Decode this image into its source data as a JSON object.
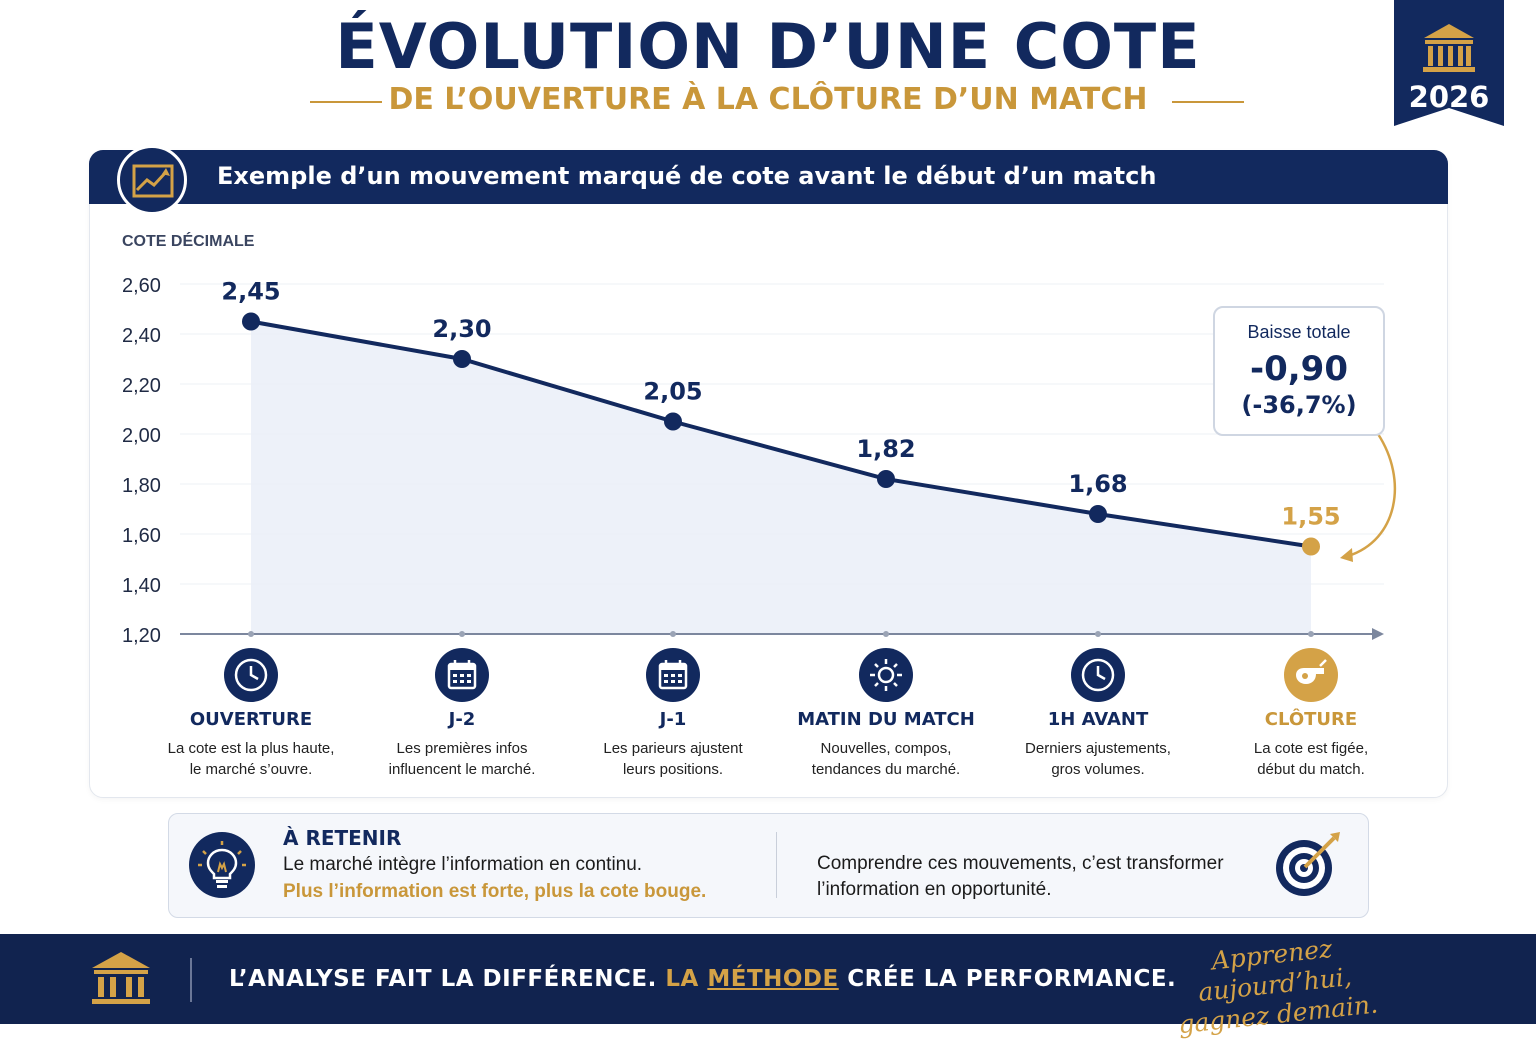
{
  "header": {
    "title": "ÉVOLUTION D’UNE COTE",
    "subtitle": "DE L’OUVERTURE À LA CLÔTURE D’UN MATCH",
    "badge_year": "2026",
    "badge_icon": "bank-icon"
  },
  "card": {
    "title": "Exemple d’un mouvement marqué de cote avant le début d’un match",
    "icon": "trend-chart-icon"
  },
  "chart_data": {
    "type": "line",
    "ylabel": "COTE DÉCIMALE",
    "ylim": [
      1.2,
      2.6
    ],
    "yticks": [
      2.6,
      2.4,
      2.2,
      2.0,
      1.8,
      1.6,
      1.4,
      1.2
    ],
    "ytick_labels": [
      "2,60",
      "2,40",
      "2,20",
      "2,00",
      "1,80",
      "1,60",
      "1,40",
      "1,20"
    ],
    "grid": true,
    "categories": [
      "OUVERTURE",
      "J-2",
      "J-1",
      "MATIN DU MATCH",
      "1H AVANT",
      "CLÔTURE"
    ],
    "values": [
      2.45,
      2.3,
      2.05,
      1.82,
      1.68,
      1.55
    ],
    "value_labels": [
      "2,45",
      "2,30",
      "2,05",
      "1,82",
      "1,68",
      "1,55"
    ],
    "colors": {
      "line": "#12295e",
      "final_point": "#d4a247",
      "area": "#e9eef8"
    },
    "annotation": {
      "label": "Baisse totale",
      "value": "-0,90",
      "pct": "(-36,7%)"
    }
  },
  "stages": [
    {
      "title": "OUVERTURE",
      "desc": [
        "La cote est la plus haute,",
        "le marché s’ouvre."
      ],
      "icon": "clock-icon"
    },
    {
      "title": "J-2",
      "desc": [
        "Les premières infos",
        "influencent le marché."
      ],
      "icon": "calendar-icon"
    },
    {
      "title": "J-1",
      "desc": [
        "Les parieurs ajustent",
        "leurs positions."
      ],
      "icon": "calendar-icon"
    },
    {
      "title": "MATIN DU MATCH",
      "desc": [
        "Nouvelles, compos,",
        "tendances du marché."
      ],
      "icon": "sun-icon"
    },
    {
      "title": "1H AVANT",
      "desc": [
        "Derniers ajustements,",
        "gros volumes."
      ],
      "icon": "clock-icon"
    },
    {
      "title": "CLÔTURE",
      "desc": [
        "La cote est figée,",
        "début du match."
      ],
      "icon": "whistle-icon"
    }
  ],
  "takeaway": {
    "title": "À RETENIR",
    "line1": "Le marché intègre l’information en continu.",
    "line2": "Plus l’information est forte, plus la cote bouge.",
    "right_line1": "Comprendre ces mouvements, c’est transformer",
    "right_line2": "l’information en opportunité.",
    "icons": [
      "lightbulb-icon",
      "target-icon"
    ]
  },
  "footer": {
    "part1": "L’ANALYSE FAIT LA DIFFÉRENCE.",
    "part2": "LA",
    "part3": "MÉTHODE",
    "part4": "CRÉE LA PERFORMANCE.",
    "script_line1": "Apprenez aujourd’hui,",
    "script_line2": "gagnez demain.",
    "colors": {
      "bg": "#11234f",
      "accent": "#d4a247"
    }
  }
}
